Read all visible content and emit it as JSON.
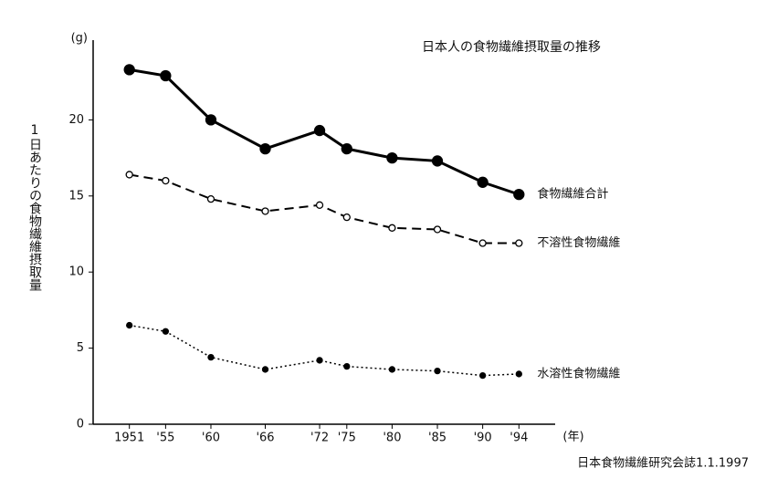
{
  "chart_data": {
    "type": "line",
    "title": "日本人の食物繊維摂取量の推移",
    "y_label": "1日あたりの食物繊維摂取量",
    "y_unit": "(g)",
    "x_unit": "(年)",
    "source": "日本食物繊維研究会誌1.1.1997",
    "x": [
      1951,
      1955,
      1960,
      1966,
      1972,
      1975,
      1980,
      1985,
      1990,
      1994
    ],
    "xlim": [
      1947,
      1998
    ],
    "xticks": [
      1951,
      {
        "value": 1955,
        "label": "'55"
      },
      {
        "value": 1960,
        "label": "'60"
      },
      {
        "value": 1966,
        "label": "'66"
      },
      {
        "value": 1972,
        "label": "'72"
      },
      {
        "value": 1975,
        "label": "'75"
      },
      {
        "value": 1980,
        "label": "'80"
      },
      {
        "value": 1985,
        "label": "'85"
      },
      {
        "value": 1990,
        "label": "'90"
      },
      {
        "value": 1994,
        "label": "'94"
      }
    ],
    "ylim": [
      0,
      25
    ],
    "yticks": [
      0,
      5,
      10,
      15,
      20
    ],
    "grid": false,
    "legend": "line-end",
    "series": [
      {
        "name": "食物繊維合計",
        "color": "#000000",
        "line_style": "solid",
        "marker": "filled-large",
        "values": [
          23.3,
          22.9,
          20.0,
          18.1,
          19.3,
          18.1,
          17.5,
          17.3,
          15.9,
          15.1
        ]
      },
      {
        "name": "不溶性食物繊維",
        "color": "#000000",
        "line_style": "dashed",
        "marker": "open",
        "values": [
          16.4,
          16.0,
          14.8,
          14.0,
          14.4,
          13.6,
          12.9,
          12.8,
          11.9,
          11.9
        ]
      },
      {
        "name": "水溶性食物繊維",
        "color": "#000000",
        "line_style": "dotted",
        "marker": "filled-small",
        "values": [
          6.5,
          6.1,
          4.4,
          3.6,
          4.2,
          3.8,
          3.6,
          3.5,
          3.2,
          3.3
        ]
      }
    ]
  }
}
